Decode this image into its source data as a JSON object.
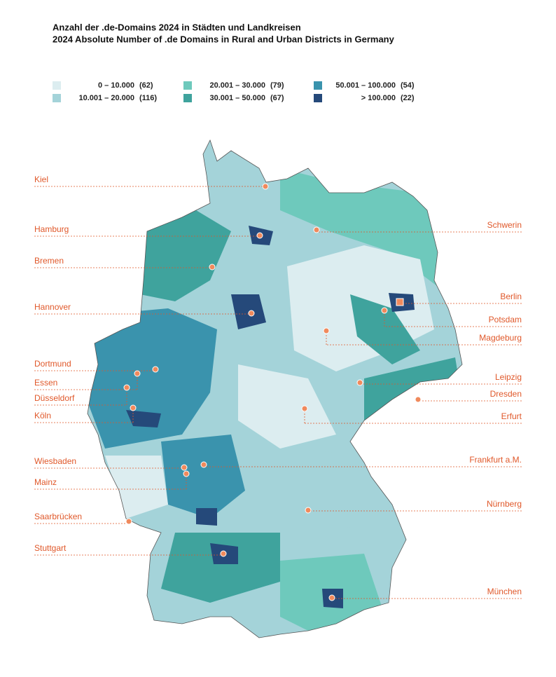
{
  "header": {
    "title": "Anzahl der .de-Domains 2024 in Städten und Landkreisen",
    "subtitle": "2024 Absolute Number of .de Domains in Rural and Urban Districts in Germany"
  },
  "legend": [
    {
      "range": "0  –  10.000",
      "count": "(62)",
      "color": "#dcedf0"
    },
    {
      "range": "10.001  –  20.000",
      "count": "(116)",
      "color": "#a4d3d9"
    },
    {
      "range": "20.001  –  30.000",
      "count": "(79)",
      "color": "#6ec9bc"
    },
    {
      "range": "30.001  –  50.000",
      "count": "(67)",
      "color": "#3fa39d"
    },
    {
      "range": "50.001  –  100.000",
      "count": "(54)",
      "color": "#3a93ad"
    },
    {
      "range": "> 100.000",
      "count": "(22)",
      "color": "#25497a"
    }
  ],
  "cities": [
    "Kiel",
    "Hamburg",
    "Bremen",
    "Hannover",
    "Dortmund",
    "Essen",
    "Düsseldorf",
    "Köln",
    "Wiesbaden",
    "Mainz",
    "Saarbrücken",
    "Stuttgart",
    "Schwerin",
    "Berlin",
    "Potsdam",
    "Magdeburg",
    "Leipzig",
    "Dresden",
    "Erfurt",
    "Frankfurt a.M.",
    "Nürnberg",
    "München"
  ]
}
